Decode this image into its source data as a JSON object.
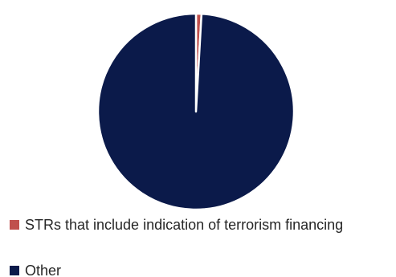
{
  "chart_data": {
    "type": "pie",
    "title": "",
    "slices": [
      {
        "label": "STRs that include indication of terrorism financing",
        "value": 0.9,
        "color": "#c0504d"
      },
      {
        "label": "Other",
        "value": 99.1,
        "color": "#0b1a4a"
      }
    ],
    "legend_position": "bottom-left"
  }
}
